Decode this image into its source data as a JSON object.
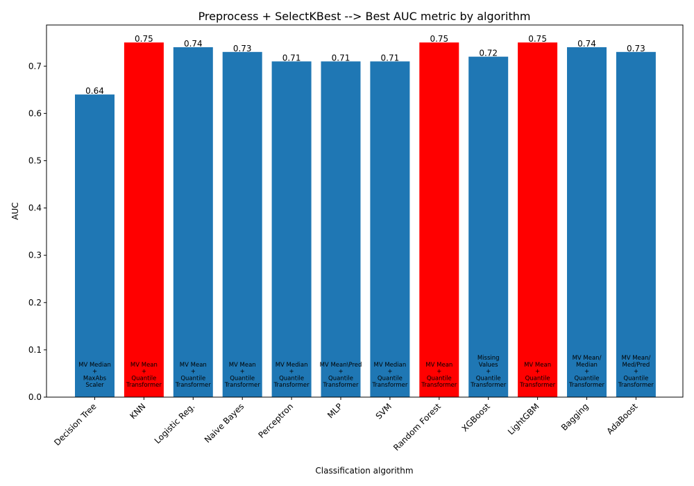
{
  "chart_data": {
    "type": "bar",
    "title": "Preprocess + SelectKBest --> Best AUC metric by algorithm",
    "xlabel": "Classification algorithm",
    "ylabel": "AUC",
    "ylim": [
      0,
      0.787
    ],
    "yticks": [
      "0.0",
      "0.1",
      "0.2",
      "0.3",
      "0.4",
      "0.5",
      "0.6",
      "0.7"
    ],
    "grid": false,
    "colors": {
      "default": "#1f77b4",
      "highlight": "#ff0000"
    },
    "categories": [
      "Decision Tree",
      "KNN",
      "Logistic Reg.",
      "Naive Bayes",
      "Perceptron",
      "MLP",
      "SVM",
      "Random Forest",
      "XGBoost",
      "LightGBM",
      "Bagging",
      "AdaBoost"
    ],
    "values": [
      0.64,
      0.75,
      0.74,
      0.73,
      0.71,
      0.71,
      0.71,
      0.75,
      0.72,
      0.75,
      0.74,
      0.73
    ],
    "value_labels": [
      "0.64",
      "0.75",
      "0.74",
      "0.73",
      "0.71",
      "0.71",
      "0.71",
      "0.75",
      "0.72",
      "0.75",
      "0.74",
      "0.73"
    ],
    "highlighted": [
      false,
      true,
      false,
      false,
      false,
      false,
      false,
      true,
      false,
      true,
      false,
      false
    ],
    "annotations": [
      [
        "MV Median",
        "+",
        "MaxAbs",
        "Scaler"
      ],
      [
        "MV Mean",
        "+",
        "Quantile",
        "Transformer"
      ],
      [
        "MV Mean",
        "+",
        "Quantile",
        "Transformer"
      ],
      [
        "MV Mean",
        "+",
        "Quantile",
        "Transformer"
      ],
      [
        "MV Median",
        "+",
        "Quantile",
        "Transformer"
      ],
      [
        "MV Mean\\Pred",
        "+",
        "Quantile",
        "Transformer"
      ],
      [
        "MV Median",
        "+",
        "Quantile",
        "Transformer"
      ],
      [
        "MV Mean",
        "+",
        "Quantile",
        "Transformer"
      ],
      [
        "Missing",
        "Values",
        "+",
        "Quantile",
        "Transformer"
      ],
      [
        "MV Mean",
        "+",
        "Quantile",
        "Transformer"
      ],
      [
        "MV Mean/",
        "Median",
        "+",
        "Quantile",
        "Transformer"
      ],
      [
        "MV Mean/",
        "Med/Pred",
        "+",
        "Quantile",
        "Transformer"
      ]
    ]
  }
}
